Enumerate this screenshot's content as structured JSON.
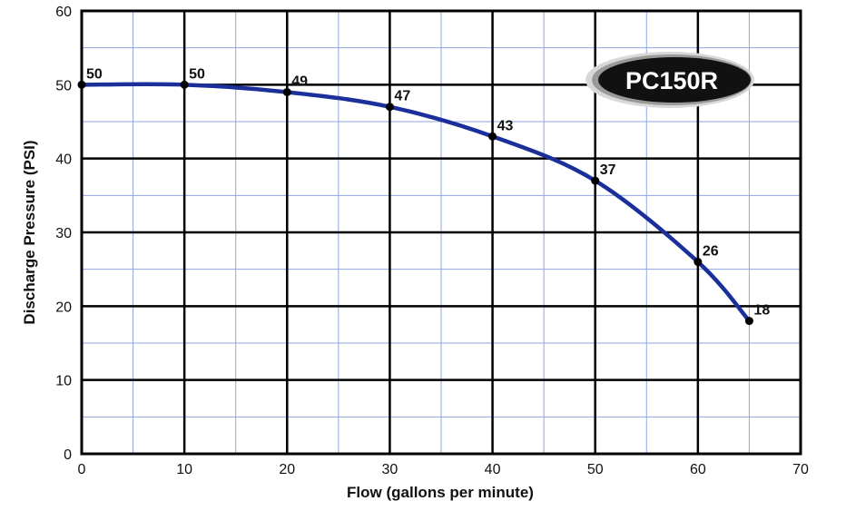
{
  "chart_data": {
    "type": "line",
    "title": "",
    "xlabel": "Flow (gallons per minute)",
    "ylabel": "Discharge Pressure (PSI)",
    "xlim": [
      0,
      70
    ],
    "ylim": [
      0,
      60
    ],
    "x_major_ticks": [
      "0",
      "10",
      "20",
      "30",
      "40",
      "50",
      "60",
      "70"
    ],
    "y_major_ticks": [
      "0",
      "10",
      "20",
      "30",
      "40",
      "50",
      "60"
    ],
    "x_minor_step": 5,
    "y_minor_step": 5,
    "grid": true,
    "badge": "PC150R",
    "series": [
      {
        "x": [
          0,
          10,
          20,
          30,
          40,
          50,
          60,
          65
        ],
        "y": [
          50,
          50,
          49,
          47,
          43,
          37,
          26,
          18
        ],
        "labels": [
          "50",
          "50",
          "49",
          "47",
          "43",
          "37",
          "26",
          "18"
        ]
      }
    ],
    "colors": {
      "line": "#1a2f9a",
      "minor_grid": "#8fa6e0",
      "major_grid": "#000000",
      "point": "#000000"
    }
  }
}
